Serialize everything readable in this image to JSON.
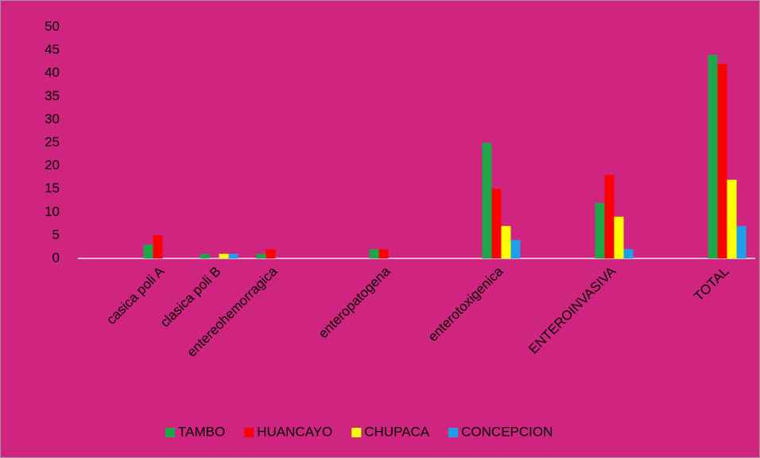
{
  "chart_data": {
    "type": "bar",
    "categories": [
      null,
      "casica poli A",
      "clasica poli B",
      "entereohemorragica",
      null,
      "enteropatogena",
      null,
      "enterotoxigenica",
      null,
      "ENTEROINVASIVA",
      null,
      "TOTAL"
    ],
    "series": [
      {
        "name": "TAMBO",
        "color": "#1fa64a",
        "values": [
          null,
          3,
          1,
          1,
          null,
          2,
          null,
          25,
          null,
          12,
          null,
          44
        ]
      },
      {
        "name": "HUANCAYO",
        "color": "#ff0000",
        "values": [
          null,
          5,
          0,
          2,
          null,
          2,
          null,
          15,
          null,
          18,
          null,
          42
        ]
      },
      {
        "name": "CHUPACA",
        "color": "#ffff00",
        "values": [
          null,
          0,
          1,
          0,
          null,
          0,
          null,
          7,
          null,
          9,
          null,
          17
        ]
      },
      {
        "name": "CONCEPCION",
        "color": "#1ea0e8",
        "values": [
          null,
          0,
          1,
          0,
          null,
          0,
          null,
          4,
          null,
          2,
          null,
          7
        ]
      }
    ],
    "ylim": [
      0,
      50
    ],
    "yticks": [
      0,
      5,
      10,
      15,
      20,
      25,
      30,
      35,
      40,
      45,
      50
    ],
    "grid": false,
    "legend": "bottom"
  }
}
